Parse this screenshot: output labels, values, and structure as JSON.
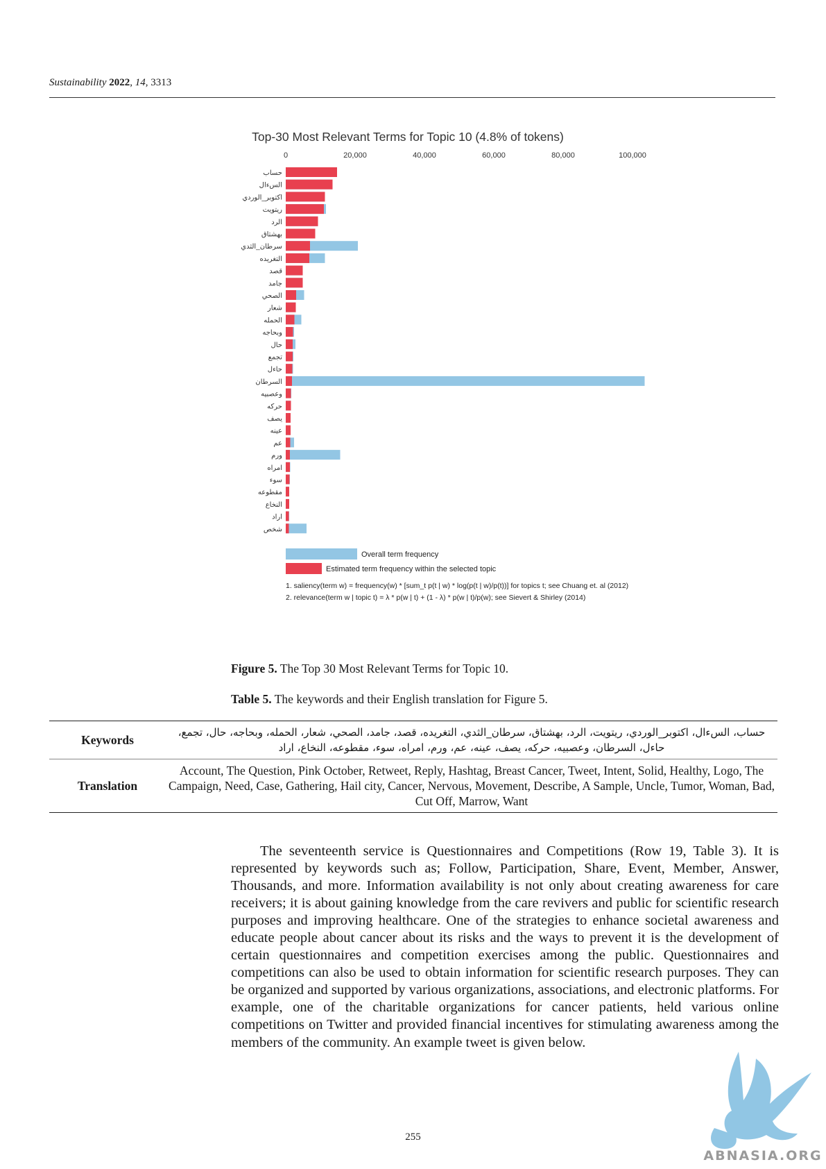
{
  "header": {
    "journal": "Sustainability",
    "year": "2022",
    "volume": "14",
    "article": "3313"
  },
  "chart_data": {
    "type": "bar",
    "orientation": "horizontal",
    "title": "Top-30 Most Relevant Terms for Topic 10 (4.8% of tokens)",
    "xlim": [
      0,
      100000
    ],
    "ticks": [
      "0",
      "20,000",
      "40,000",
      "60,000",
      "80,000",
      "100,000"
    ],
    "tick_values": [
      0,
      20000,
      40000,
      60000,
      80000,
      100000
    ],
    "categories": [
      "حساب",
      "السءال",
      "اكتوبر_الوردي",
      "ريتويت",
      "الرد",
      "بهشتاق",
      "سرطان_الثدي",
      "التغريده",
      "قصد",
      "جامد",
      "الصحي",
      "شعار",
      "الحمله",
      "وبحاجه",
      "حال",
      "تجمع",
      "حاءل",
      "السرطان",
      "وعصبيه",
      "حركه",
      "يصف",
      "عينه",
      "عم",
      "ورم",
      "امراه",
      "سوء",
      "مقطوعه",
      "النخاع",
      "اراد",
      "شخص"
    ],
    "series": [
      {
        "name": "Overall term frequency",
        "color": "#93c6e4",
        "values": [
          14800,
          13500,
          11300,
          11600,
          9300,
          8500,
          20800,
          11300,
          4900,
          4900,
          5300,
          2900,
          4500,
          2400,
          2800,
          2200,
          2100,
          103500,
          1600,
          1500,
          1400,
          1400,
          2400,
          15700,
          1300,
          1200,
          1000,
          1000,
          1000,
          6000
        ]
      },
      {
        "name": "Estimated term frequency within the selected topic",
        "color": "#e8404f",
        "values": [
          14800,
          13500,
          11300,
          11000,
          9300,
          8500,
          7000,
          6800,
          4900,
          4900,
          3000,
          2900,
          2500,
          2100,
          2000,
          2000,
          1900,
          1800,
          1500,
          1500,
          1400,
          1400,
          1300,
          1200,
          1200,
          1100,
          1000,
          1000,
          900,
          900
        ]
      }
    ],
    "notes": [
      "1. saliency(term w) = frequency(w) * [sum_t p(t | w) * log(p(t | w)/p(t))] for topics t; see Chuang et. al (2012)",
      "2. relevance(term w | topic t) = λ * p(w | t) + (1 - λ) * p(w | t)/p(w); see Sievert & Shirley (2014)"
    ]
  },
  "figure_caption": {
    "label": "Figure 5.",
    "text": " The Top 30 Most Relevant Terms for Topic 10."
  },
  "table_caption": {
    "label": "Table 5.",
    "text": " The keywords and their English translation for Figure 5."
  },
  "table": {
    "keywords_label": "Keywords",
    "keywords_value": "حساب، السءال، اكتوبر_الوردي، ريتويت، الرد، بهشتاق، سرطان_الثدي، التغريده، قصد، جامد، الصحي، شعار، الحمله، وبحاجه، حال، تجمع، حاءل، السرطان، وعصبيه، حركه، يصف، عينه، عم، ورم، امراه، سوء، مقطوعه، النخاع، اراد",
    "translation_label": "Translation",
    "translation_value": "Account, The Question, Pink October, Retweet, Reply, Hashtag, Breast Cancer, Tweet, Intent, Solid, Healthy, Logo, The Campaign, Need, Case, Gathering, Hail city, Cancer, Nervous, Movement, Describe, A Sample, Uncle, Tumor, Woman, Bad, Cut Off, Marrow, Want"
  },
  "body_text": "The seventeenth service is Questionnaires and Competitions (Row 19, Table 3). It is represented by keywords such as; Follow, Participation, Share, Event, Member, Answer, Thousands, and more. Information availability is not only about creating awareness for care receivers; it is about gaining knowledge from the care revivers and public for scientific research purposes and improving healthcare. One of the strategies to enhance societal awareness and educate people about cancer about its risks and the ways to prevent it is the development of certain questionnaires and competition exercises among the public. Questionnaires and competitions can also be used to obtain information for scientific research purposes. They can be organized and supported by various organizations, associations, and electronic platforms. For example, one of the charitable organizations for cancer patients, held various online competitions on Twitter and provided financial incentives for stimulating awareness among the members of the community. An example tweet is given below.",
  "page_number": "255",
  "watermark_text": "ABNASIA.ORG"
}
